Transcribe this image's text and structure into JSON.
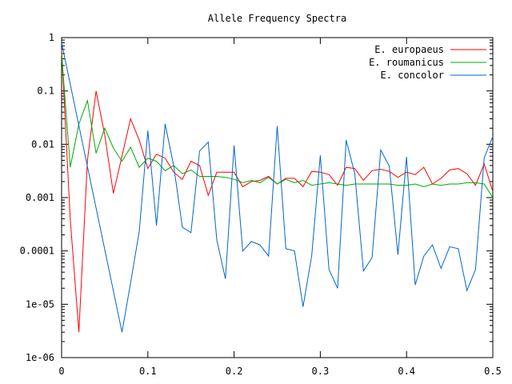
{
  "chart_data": {
    "type": "line",
    "title": "Allele Frequency Spectra",
    "xlabel": "",
    "ylabel": "",
    "xlim": [
      0,
      0.5
    ],
    "ylim": [
      1e-06,
      1
    ],
    "yscale": "log",
    "grid": false,
    "legend_position": "top-right",
    "x_ticks": [
      0,
      0.1,
      0.2,
      0.3,
      0.4,
      0.5
    ],
    "x_tick_labels": [
      "0",
      "0.1",
      "0.2",
      "0.3",
      "0.4",
      "0.5"
    ],
    "y_ticks": [
      1e-06,
      1e-05,
      0.0001,
      0.001,
      0.01,
      0.1,
      1
    ],
    "y_tick_labels": [
      "1e-06",
      "1e-05",
      "0.0001",
      "0.001",
      "0.01",
      "0.1",
      "1"
    ],
    "series": [
      {
        "name": "E. europaeus",
        "color": "#ff0000",
        "x": [
          0,
          0.01,
          0.02,
          0.03,
          0.04,
          0.05,
          0.06,
          0.07,
          0.08,
          0.09,
          0.1,
          0.11,
          0.12,
          0.13,
          0.14,
          0.15,
          0.16,
          0.17,
          0.18,
          0.19,
          0.2,
          0.21,
          0.22,
          0.23,
          0.24,
          0.25,
          0.26,
          0.27,
          0.28,
          0.29,
          0.3,
          0.31,
          0.32,
          0.33,
          0.34,
          0.35,
          0.36,
          0.37,
          0.38,
          0.39,
          0.4,
          0.41,
          0.42,
          0.43,
          0.44,
          0.45,
          0.46,
          0.47,
          0.48,
          0.49,
          0.5
        ],
        "y": [
          0.6,
          0.0004,
          3e-06,
          0.005,
          0.1,
          0.015,
          0.0012,
          0.006,
          0.03,
          0.012,
          0.0035,
          0.0065,
          0.0055,
          0.003,
          0.0022,
          0.0048,
          0.004,
          0.0011,
          0.003,
          0.003,
          0.003,
          0.0016,
          0.002,
          0.0021,
          0.0025,
          0.0018,
          0.0023,
          0.0023,
          0.0016,
          0.0031,
          0.003,
          0.0027,
          0.0017,
          0.0037,
          0.0035,
          0.0021,
          0.0032,
          0.0034,
          0.0031,
          0.0024,
          0.003,
          0.0027,
          0.0037,
          0.0018,
          0.0023,
          0.0033,
          0.0035,
          0.0028,
          0.0017,
          0.0043,
          0.0013
        ]
      },
      {
        "name": "E. roumanicus",
        "color": "#00aa00",
        "x": [
          0,
          0.01,
          0.02,
          0.03,
          0.04,
          0.05,
          0.06,
          0.07,
          0.08,
          0.09,
          0.1,
          0.11,
          0.12,
          0.13,
          0.14,
          0.15,
          0.16,
          0.17,
          0.18,
          0.19,
          0.2,
          0.21,
          0.22,
          0.23,
          0.24,
          0.25,
          0.26,
          0.27,
          0.28,
          0.29,
          0.3,
          0.31,
          0.32,
          0.33,
          0.34,
          0.35,
          0.36,
          0.37,
          0.38,
          0.39,
          0.4,
          0.41,
          0.42,
          0.43,
          0.44,
          0.45,
          0.46,
          0.47,
          0.48,
          0.49,
          0.5
        ],
        "y": [
          0.5,
          0.0037,
          0.024,
          0.066,
          0.0068,
          0.02,
          0.0085,
          0.0048,
          0.0088,
          0.0037,
          0.0055,
          0.0048,
          0.0032,
          0.004,
          0.0028,
          0.0033,
          0.0025,
          0.0025,
          0.0025,
          0.0024,
          0.0022,
          0.0019,
          0.0021,
          0.0019,
          0.0024,
          0.0018,
          0.0022,
          0.0019,
          0.0021,
          0.0017,
          0.0018,
          0.0019,
          0.0018,
          0.0017,
          0.0018,
          0.0018,
          0.0018,
          0.0018,
          0.0018,
          0.0017,
          0.0017,
          0.0018,
          0.0016,
          0.0018,
          0.0017,
          0.0018,
          0.0018,
          0.0019,
          0.0019,
          0.0018,
          0.001
        ]
      },
      {
        "name": "E. concolor",
        "color": "#0066cc",
        "x": [
          0,
          0.07,
          0.08,
          0.09,
          0.1,
          0.11,
          0.12,
          0.13,
          0.14,
          0.15,
          0.16,
          0.17,
          0.18,
          0.19,
          0.2,
          0.21,
          0.22,
          0.23,
          0.24,
          0.25,
          0.26,
          0.27,
          0.28,
          0.29,
          0.3,
          0.31,
          0.32,
          0.33,
          0.34,
          0.35,
          0.36,
          0.37,
          0.38,
          0.39,
          0.4,
          0.41,
          0.42,
          0.43,
          0.44,
          0.45,
          0.46,
          0.47,
          0.48,
          0.49,
          0.5
        ],
        "y": [
          0.8,
          3e-06,
          2.5e-05,
          0.00023,
          0.018,
          0.0003,
          0.024,
          0.004,
          0.00028,
          0.00022,
          0.0075,
          0.011,
          0.00016,
          3e-05,
          0.0095,
          0.0001,
          0.00015,
          0.00013,
          8e-05,
          0.022,
          0.00011,
          0.0001,
          9e-06,
          8e-05,
          0.0062,
          4.5e-05,
          2e-05,
          0.012,
          0.0028,
          4.2e-05,
          7.5e-05,
          0.0078,
          0.0039,
          8.5e-05,
          0.0058,
          2.3e-05,
          8e-05,
          0.00013,
          4.7e-05,
          0.00012,
          0.00011,
          1.8e-05,
          4.5e-05,
          0.0055,
          0.014
        ]
      }
    ]
  }
}
